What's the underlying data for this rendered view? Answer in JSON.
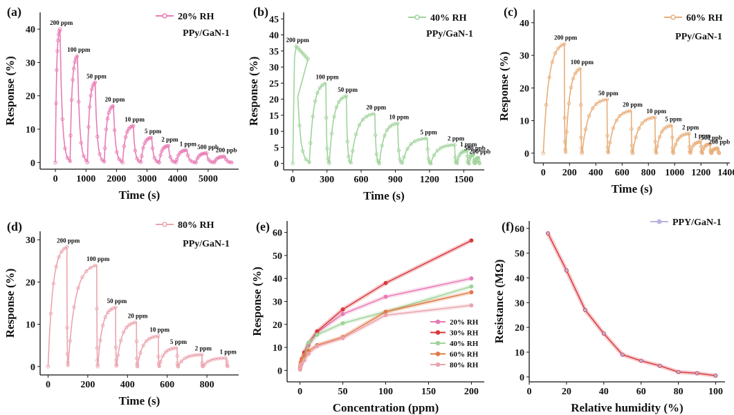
{
  "chart_data": [
    {
      "type": "line",
      "panel_label": "(a)",
      "xlabel": "Time (s)",
      "ylabel": "Response (%)",
      "xlim": [
        -500,
        6000
      ],
      "ylim": [
        -2,
        45
      ],
      "xticks": [
        0,
        1000,
        2000,
        3000,
        4000,
        5000
      ],
      "yticks": [
        0,
        10,
        20,
        30,
        40
      ],
      "color": "#e87ab5",
      "legend": {
        "label": "20% RH",
        "position": "top-right"
      },
      "sample_label": "PPy/GaN-1",
      "pulses": [
        {
          "label": "200 ppm",
          "start": 0,
          "peak_t": 150,
          "end": 480,
          "peak": 40
        },
        {
          "label": "100 ppm",
          "start": 480,
          "peak_t": 720,
          "end": 1050,
          "peak": 32
        },
        {
          "label": "50 ppm",
          "start": 1050,
          "peak_t": 1300,
          "end": 1600,
          "peak": 24
        },
        {
          "label": "20 ppm",
          "start": 1600,
          "peak_t": 1900,
          "end": 2200,
          "peak": 17
        },
        {
          "label": "10 ppm",
          "start": 2200,
          "peak_t": 2550,
          "end": 2800,
          "peak": 11
        },
        {
          "label": "5 ppm",
          "start": 2800,
          "peak_t": 3150,
          "end": 3400,
          "peak": 7.5
        },
        {
          "label": "2 ppm",
          "start": 3400,
          "peak_t": 3700,
          "end": 3950,
          "peak": 5
        },
        {
          "label": "1 ppm",
          "start": 3950,
          "peak_t": 4300,
          "end": 4600,
          "peak": 3.7
        },
        {
          "label": "500 ppb",
          "start": 4600,
          "peak_t": 4950,
          "end": 5200,
          "peak": 2.8
        },
        {
          "label": "200 ppb",
          "start": 5200,
          "peak_t": 5550,
          "end": 5800,
          "peak": 1.8
        }
      ]
    },
    {
      "type": "line",
      "panel_label": "(b)",
      "xlabel": "Time (s)",
      "ylabel": "Response (%)",
      "xlim": [
        -80,
        1680
      ],
      "ylim": [
        -2,
        47
      ],
      "xticks": [
        0,
        300,
        600,
        900,
        1200,
        1500
      ],
      "yticks": [
        0,
        5,
        10,
        15,
        20,
        25,
        30,
        35,
        40,
        45
      ],
      "color": "#9fd39a",
      "legend": {
        "label": "40% RH",
        "position": "top-right"
      },
      "sample_label": "PPy/GaN-1",
      "pulses": [
        {
          "label": "200 ppm",
          "start": 0,
          "peak_t": 30,
          "end": 145,
          "peak": 36.5,
          "sustained": true
        },
        {
          "label": "100 ppm",
          "start": 145,
          "peak_t": 290,
          "end": 320,
          "peak": 25
        },
        {
          "label": "50 ppm",
          "start": 320,
          "peak_t": 470,
          "end": 510,
          "peak": 21
        },
        {
          "label": "20 ppm",
          "start": 510,
          "peak_t": 720,
          "end": 760,
          "peak": 15.5
        },
        {
          "label": "10 ppm",
          "start": 760,
          "peak_t": 920,
          "end": 960,
          "peak": 12.5
        },
        {
          "label": "5 ppm",
          "start": 960,
          "peak_t": 1180,
          "end": 1210,
          "peak": 7.8
        },
        {
          "label": "2 ppm",
          "start": 1210,
          "peak_t": 1420,
          "end": 1440,
          "peak": 5.8
        },
        {
          "label": "1 ppm",
          "start": 1440,
          "peak_t": 1530,
          "end": 1545,
          "peak": 4
        },
        {
          "label": "500 ppb",
          "start": 1545,
          "peak_t": 1585,
          "end": 1600,
          "peak": 2.8
        },
        {
          "label": "200 ppb",
          "start": 1600,
          "peak_t": 1630,
          "end": 1640,
          "peak": 1.8
        }
      ]
    },
    {
      "type": "line",
      "panel_label": "(c)",
      "xlabel": "Time (s)",
      "ylabel": "Response (%)",
      "xlim": [
        -70,
        1420
      ],
      "ylim": [
        -3,
        44
      ],
      "xticks": [
        0,
        200,
        400,
        600,
        800,
        1000,
        1200,
        1400
      ],
      "yticks": [
        0,
        10,
        20,
        30,
        40
      ],
      "color": "#e8ad78",
      "legend": {
        "label": "60% RH",
        "position": "top-right"
      },
      "sample_label": "PPy/GaN-1",
      "pulses": [
        {
          "label": "200 ppm",
          "start": 0,
          "peak_t": 160,
          "end": 170,
          "peak": 33.5
        },
        {
          "label": "100 ppm",
          "start": 170,
          "peak_t": 285,
          "end": 295,
          "peak": 26
        },
        {
          "label": "50 ppm",
          "start": 295,
          "peak_t": 485,
          "end": 495,
          "peak": 16.5
        },
        {
          "label": "20 ppm",
          "start": 495,
          "peak_t": 670,
          "end": 680,
          "peak": 13
        },
        {
          "label": "10 ppm",
          "start": 680,
          "peak_t": 850,
          "end": 860,
          "peak": 11
        },
        {
          "label": "5 ppm",
          "start": 860,
          "peak_t": 980,
          "end": 990,
          "peak": 8.5
        },
        {
          "label": "2 ppm",
          "start": 990,
          "peak_t": 1110,
          "end": 1120,
          "peak": 6
        },
        {
          "label": "1 ppm",
          "start": 1120,
          "peak_t": 1200,
          "end": 1210,
          "peak": 3.5
        },
        {
          "label": "500 ppb",
          "start": 1210,
          "peak_t": 1270,
          "end": 1280,
          "peak": 2.8
        },
        {
          "label": "200 ppb",
          "start": 1280,
          "peak_t": 1330,
          "end": 1340,
          "peak": 1.5
        }
      ]
    },
    {
      "type": "line",
      "panel_label": "(d)",
      "xlabel": "Time (s)",
      "ylabel": "Response (%)",
      "xlim": [
        -40,
        960
      ],
      "ylim": [
        -2,
        32
      ],
      "xticks": [
        0,
        200,
        400,
        600,
        800
      ],
      "yticks": [
        0,
        10,
        20,
        30
      ],
      "color": "#eba4ae",
      "legend": {
        "label": "80% RH",
        "position": "top-right"
      },
      "sample_label": "PPy/GaN-1",
      "pulses": [
        {
          "label": "200 ppm",
          "start": 0,
          "peak_t": 95,
          "end": 100,
          "peak": 28.3
        },
        {
          "label": "100 ppm",
          "start": 100,
          "peak_t": 245,
          "end": 250,
          "peak": 24
        },
        {
          "label": "50 ppm",
          "start": 250,
          "peak_t": 340,
          "end": 345,
          "peak": 14
        },
        {
          "label": "20 ppm",
          "start": 345,
          "peak_t": 445,
          "end": 450,
          "peak": 10.5
        },
        {
          "label": "10 ppm",
          "start": 450,
          "peak_t": 555,
          "end": 560,
          "peak": 7.2
        },
        {
          "label": "5 ppm",
          "start": 560,
          "peak_t": 650,
          "end": 655,
          "peak": 4.4
        },
        {
          "label": "2 ppm",
          "start": 655,
          "peak_t": 775,
          "end": 780,
          "peak": 2.8
        },
        {
          "label": "1 ppm",
          "start": 780,
          "peak_t": 900,
          "end": 905,
          "peak": 2
        }
      ]
    },
    {
      "type": "line",
      "panel_label": "(e)",
      "xlabel": "Concentration (ppm)",
      "ylabel": "Response (%)",
      "xlim": [
        -15,
        215
      ],
      "ylim": [
        -5,
        65
      ],
      "xticks": [
        0,
        50,
        100,
        150,
        200
      ],
      "yticks": [
        0,
        10,
        20,
        30,
        40,
        50,
        60
      ],
      "legend_position": "bottom-right",
      "x": [
        0.2,
        0.5,
        1,
        2,
        5,
        10,
        20,
        50,
        100,
        200
      ],
      "series": [
        {
          "name": "20% RH",
          "color": "#e87ab5",
          "values": [
            0.8,
            1.6,
            2.5,
            3.6,
            7.1,
            10.8,
            16.5,
            24.5,
            32,
            40
          ]
        },
        {
          "name": "30% RH",
          "color": "#d9393e",
          "values": [
            1.0,
            1.8,
            2.8,
            4.0,
            7.8,
            11.8,
            17,
            26.5,
            38,
            56.5
          ]
        },
        {
          "name": "40% RH",
          "color": "#9fd39a",
          "values": [
            1.2,
            1.8,
            2.8,
            3.9,
            5.8,
            12,
            15.5,
            20.5,
            25.5,
            36.5
          ]
        },
        {
          "name": "60% RH",
          "color": "#e07b46",
          "values": [
            0.5,
            1.5,
            3.5,
            5.0,
            6.5,
            8.5,
            11,
            14.5,
            25.5,
            34
          ]
        },
        {
          "name": "80% RH",
          "color": "#eba4ae",
          "values": [
            0.3,
            1.0,
            2.0,
            2.8,
            4.4,
            7.2,
            10.5,
            14,
            24,
            28.3
          ]
        }
      ]
    },
    {
      "type": "line",
      "panel_label": "(f)",
      "xlabel": "Relative humidity (%)",
      "ylabel": "Resistance (MΩ)",
      "xlim": [
        0,
        105
      ],
      "ylim": [
        -2,
        63
      ],
      "xticks": [
        0,
        20,
        40,
        60,
        80,
        100
      ],
      "yticks": [
        0,
        10,
        20,
        30,
        40,
        50,
        60
      ],
      "legend_position": "top-right",
      "series": [
        {
          "name": "PPY/GaN-1",
          "color": "#b8b4e0",
          "line_color": "#d9393e",
          "x": [
            10,
            20,
            30,
            40,
            50,
            60,
            70,
            80,
            90,
            100
          ],
          "values": [
            58,
            43,
            27,
            17.5,
            9,
            6.5,
            4.5,
            2,
            1.5,
            0.5
          ]
        }
      ]
    }
  ]
}
